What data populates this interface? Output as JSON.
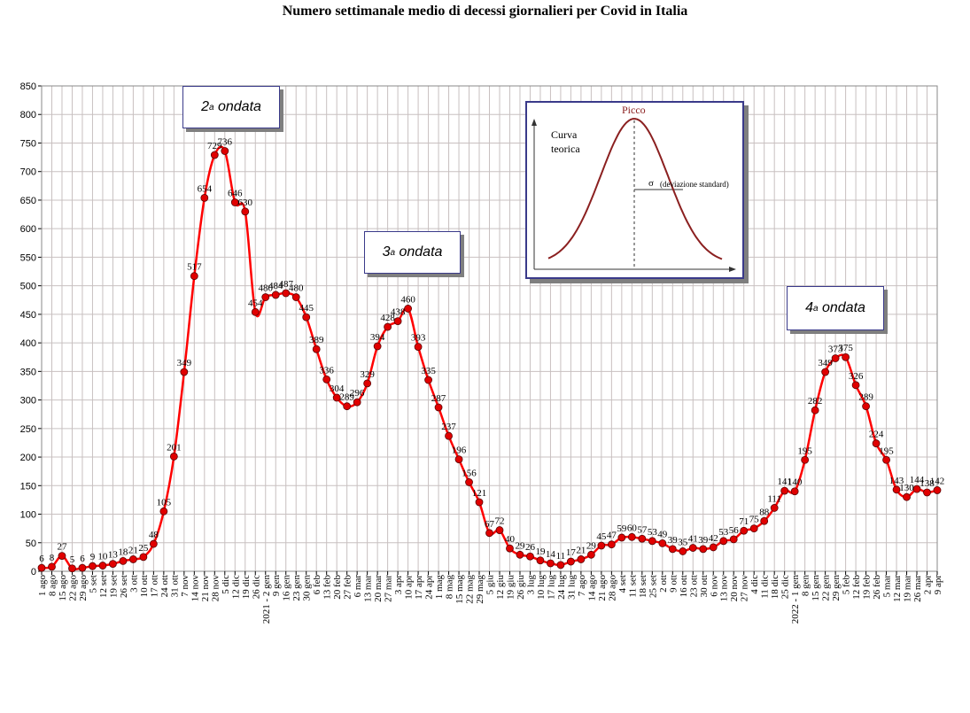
{
  "chart_data": {
    "type": "line",
    "title": "Numero settimanale medio di decessi giornalieri per Covid in Italia",
    "xlabel": "",
    "ylabel": "",
    "ylim": [
      0,
      850
    ],
    "yticks": [
      0,
      50,
      100,
      150,
      200,
      250,
      300,
      350,
      400,
      450,
      500,
      550,
      600,
      650,
      700,
      750,
      800,
      850
    ],
    "grid": true,
    "categories": [
      "1 ago",
      "8 ago",
      "15 ago",
      "22 ago",
      "29 ago",
      "5 set",
      "12 set",
      "19 set",
      "26 set",
      "3 ott",
      "10 ott",
      "17 ott",
      "24 ott",
      "31 ott",
      "7 nov",
      "14 nov",
      "21 nov",
      "28 nov",
      "5 dic",
      "12 dic",
      "19 dic",
      "26 dic",
      "2021 - 2 gen",
      "9 gen",
      "16 gen",
      "23 gen",
      "30 gen",
      "6 feb",
      "13 feb",
      "20 feb",
      "27 feb",
      "6 mar",
      "13 mar",
      "20 mar",
      "27 mar",
      "3 apr",
      "10 apr",
      "17 apr",
      "24 apr",
      "1 mag",
      "8 mag",
      "15 mag",
      "22 mag",
      "29 mag",
      "5 giu",
      "12 giu",
      "19 giu",
      "26 giu",
      "3 lug",
      "10 lug",
      "17 lug",
      "24 lug",
      "31 lug",
      "7 ago",
      "14 ago",
      "21 ago",
      "28 ago",
      "4 set",
      "11 set",
      "18 set",
      "25 set",
      "2 ott",
      "9 ott",
      "16 ott",
      "23 ott",
      "30 ott",
      "6 nov",
      "13 nov",
      "20 nov",
      "27 nov",
      "4 dic",
      "11 dic",
      "18 dic",
      "25 dic",
      "2022 - 1 gen",
      "8 gen",
      "15 gen",
      "22 gen",
      "29 gen",
      "5 feb",
      "12 feb",
      "19 feb",
      "26 feb",
      "5 mar",
      "12 mar",
      "19 mar",
      "26 mar",
      "2 apr",
      "9 apr"
    ],
    "series": [
      {
        "values": [
          6,
          8,
          27,
          5,
          6,
          9,
          10,
          13,
          18,
          21,
          25,
          48,
          105,
          201,
          349,
          517,
          654,
          729,
          736,
          646,
          630,
          454,
          480,
          484,
          487,
          480,
          445,
          389,
          336,
          304,
          289,
          296,
          329,
          394,
          428,
          438,
          460,
          393,
          335,
          287,
          237,
          196,
          156,
          121,
          67,
          72,
          40,
          29,
          26,
          19,
          14,
          11,
          17,
          21,
          29,
          45,
          47,
          59,
          60,
          57,
          53,
          49,
          39,
          35,
          41,
          39,
          42,
          53,
          56,
          71,
          75,
          88,
          111,
          141,
          140,
          195,
          282,
          349,
          373,
          375,
          326,
          289,
          224,
          195,
          143,
          130,
          144,
          138,
          142
        ],
        "labels": [
          "6",
          "8",
          "27",
          "5",
          "6",
          "9",
          "10",
          "13",
          "18",
          "21",
          "25",
          "48",
          "105",
          "201",
          "349",
          "517",
          "654",
          "729",
          "736",
          "646",
          "630",
          "454",
          "480",
          "484",
          "487",
          "480",
          "445",
          "389",
          "336",
          "304",
          "289",
          "296",
          "329",
          "394",
          "428",
          "438",
          "460",
          "393",
          "335",
          "287",
          "237",
          "196",
          "156",
          "121",
          "67",
          "72",
          "40",
          "29",
          "26",
          "19",
          "14",
          "11",
          "17",
          "21",
          "29",
          "45",
          "47",
          "59",
          "60",
          "57",
          "53",
          "49",
          "39",
          "35",
          "41",
          "39",
          "42",
          "53",
          "56",
          "71",
          "75",
          "88",
          "111",
          "141",
          "140",
          "195",
          "282",
          "349",
          "373",
          "375",
          "326",
          "289",
          "224",
          "195",
          "143",
          "130",
          "144",
          "138",
          "142"
        ],
        "color": "#ff0000",
        "marker_color": "#e00000"
      }
    ],
    "annotations": [
      {
        "label": "2",
        "sup": "a",
        "text": " ondata"
      },
      {
        "label": "3",
        "sup": "a",
        "text": " ondata"
      },
      {
        "label": "4",
        "sup": "a",
        "text": " ondata"
      }
    ],
    "inset": {
      "title": "Picco",
      "ylabel_line1": "Curva",
      "ylabel_line2": "teorica",
      "sigma": "σ",
      "sigma_text": "(deviazione standard)"
    }
  }
}
